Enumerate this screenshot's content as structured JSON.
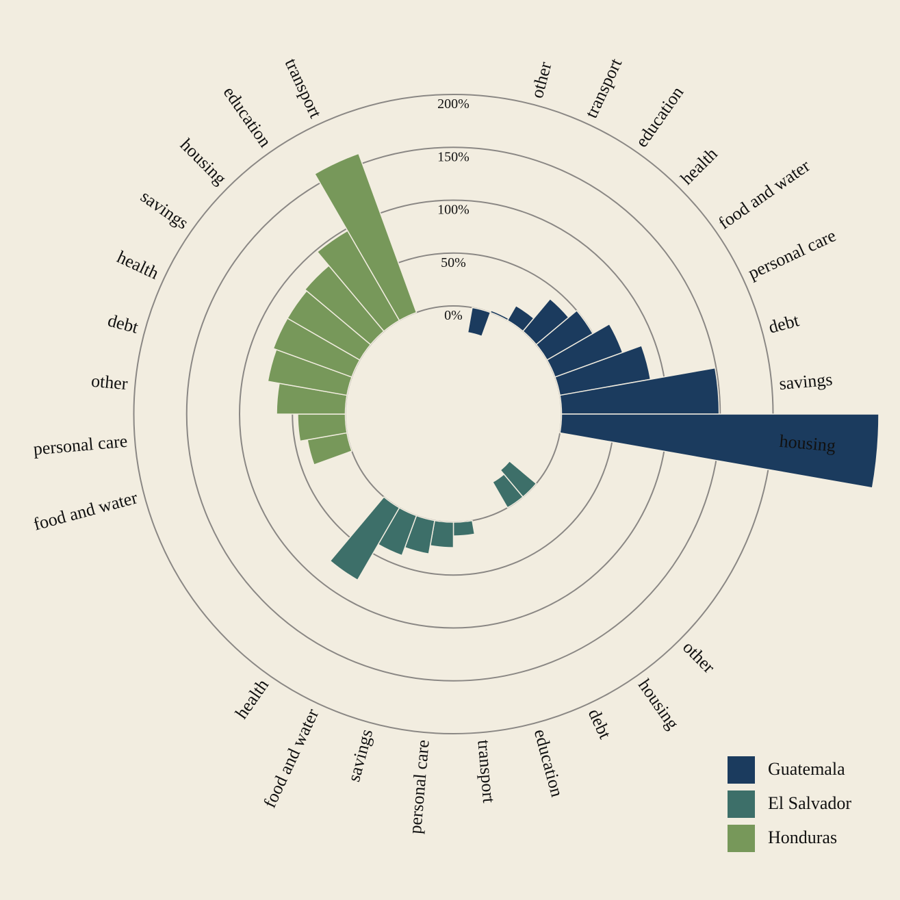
{
  "chart_data": {
    "type": "bar",
    "subtype": "radial-bar",
    "title": "",
    "unit": "%",
    "radial_ticks": [
      0,
      50,
      100,
      150,
      200
    ],
    "radial_tick_labels": [
      "0%",
      "50%",
      "100%",
      "150%",
      "200%"
    ],
    "legend": {
      "placement": "bottom-right",
      "entries": [
        "Guatemala",
        "El Salvador",
        "Honduras"
      ]
    },
    "series": [
      {
        "name": "Guatemala",
        "color": "#1b3b5e",
        "categories": [
          "other",
          "transport",
          "education",
          "health",
          "food and water",
          "personal care",
          "debt",
          "savings",
          "housing"
        ],
        "values": [
          -24,
          2,
          16,
          40,
          50,
          68,
          87,
          149,
          300
        ]
      },
      {
        "name": "El Salvador",
        "color": "#3d6f69",
        "categories": [
          "other",
          "housing",
          "debt",
          "education",
          "transport",
          "personal care",
          "savings",
          "food and water",
          "health"
        ],
        "values": [
          -33,
          -28,
          0,
          0,
          13,
          24,
          32,
          40,
          79
        ]
      },
      {
        "name": "Honduras",
        "color": "#77985a",
        "categories": [
          "food and water",
          "personal care",
          "other",
          "debt",
          "health",
          "savings",
          "housing",
          "education",
          "transport"
        ],
        "values": [
          38,
          45,
          65,
          76,
          79,
          79,
          81,
          98,
          160
        ]
      }
    ]
  }
}
